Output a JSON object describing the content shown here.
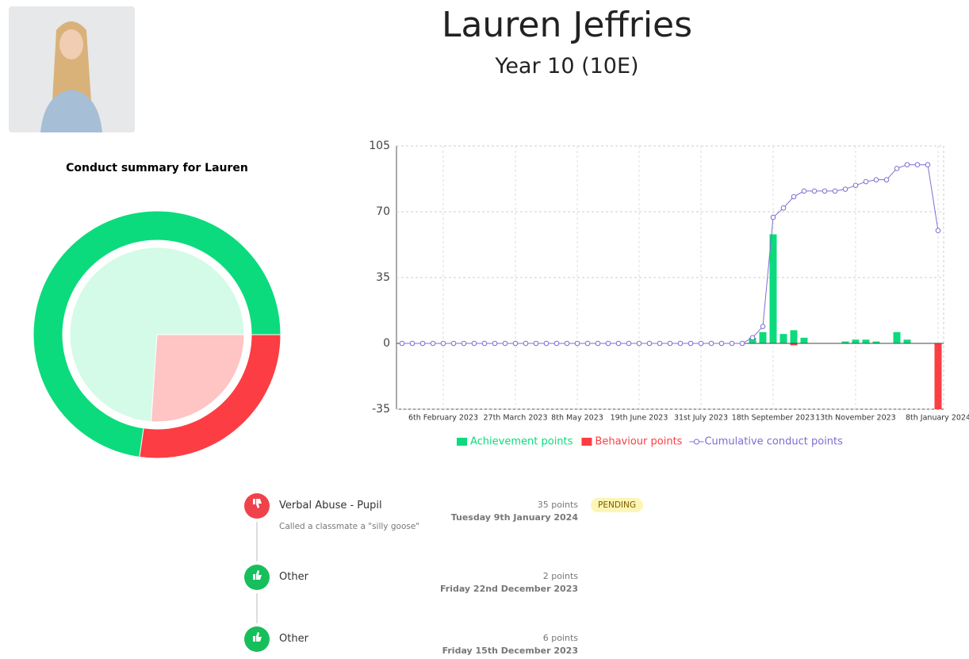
{
  "profile": {
    "name": "Lauren Jeffries",
    "subtitle": "Year 10 (10E)"
  },
  "summary_chart": {
    "type": "donut",
    "title": "Conduct summary for Lauren",
    "rings": [
      {
        "values": [
          96,
          36
        ],
        "colors": [
          "#0bdb7c",
          "#fc3d43"
        ]
      },
      {
        "values": [
          17,
          6
        ],
        "colors": [
          "#d4fbe7",
          "#ffc4c4"
        ]
      }
    ]
  },
  "points_chart": {
    "type": "bar-line",
    "categories": [
      null,
      null,
      null,
      null,
      "6th February 2023",
      null,
      null,
      null,
      null,
      null,
      null,
      "27th March 2023",
      null,
      null,
      null,
      null,
      null,
      "8th May 2023",
      null,
      null,
      null,
      null,
      null,
      "19th June 2023",
      null,
      null,
      null,
      null,
      null,
      "31st July 2023",
      null,
      null,
      null,
      null,
      null,
      null,
      "18th September 2023",
      null,
      null,
      null,
      null,
      null,
      null,
      null,
      "13th November 2023",
      null,
      null,
      null,
      null,
      null,
      null,
      null,
      "8th January 2024"
    ],
    "series": [
      {
        "name": "Achievement points",
        "color": "#0bdb7c",
        "type": "bar",
        "values": [
          0,
          0,
          0,
          0,
          0,
          0,
          0,
          0,
          0,
          0,
          0,
          0,
          0,
          0,
          0,
          0,
          0,
          0,
          0,
          0,
          0,
          0,
          0,
          0,
          0,
          0,
          0,
          0,
          0,
          0,
          0,
          0,
          0,
          0,
          3,
          6,
          58,
          5,
          7,
          3,
          0,
          0,
          0,
          1,
          2,
          2,
          1,
          0,
          6,
          2,
          0,
          0,
          0
        ]
      },
      {
        "name": "Behaviour points",
        "color": "#fc3d43",
        "type": "bar",
        "values": [
          0,
          0,
          0,
          0,
          0,
          0,
          0,
          0,
          0,
          0,
          0,
          0,
          0,
          0,
          0,
          0,
          0,
          0,
          0,
          0,
          0,
          0,
          0,
          0,
          0,
          0,
          0,
          0,
          0,
          0,
          0,
          0,
          0,
          0,
          0,
          0,
          0,
          0,
          -1,
          0,
          0,
          0,
          0,
          0,
          0,
          0,
          0,
          0,
          0,
          0,
          0,
          0,
          -35
        ]
      },
      {
        "name": "Cumulative conduct points",
        "color": "#7b6fd0",
        "type": "line",
        "values": [
          0,
          0,
          0,
          0,
          0,
          0,
          0,
          0,
          0,
          0,
          0,
          0,
          0,
          0,
          0,
          0,
          0,
          0,
          0,
          0,
          0,
          0,
          0,
          0,
          0,
          0,
          0,
          0,
          0,
          0,
          0,
          0,
          0,
          0,
          3,
          9,
          67,
          72,
          78,
          81,
          81,
          81,
          81,
          82,
          84,
          86,
          87,
          87,
          93,
          95,
          95,
          95,
          60
        ]
      }
    ],
    "ylim": [
      -35,
      105
    ],
    "yticks": [
      -35,
      0,
      35,
      70,
      105
    ],
    "grid": true,
    "legend": "bottom"
  },
  "timeline": [
    {
      "kind": "behaviour",
      "title": "Verbal Abuse - Pupil",
      "description": "Called a classmate a \"silly goose\"",
      "points": "35 points",
      "date": "Tuesday 9th January 2024",
      "status": "PENDING"
    },
    {
      "kind": "achievement",
      "title": "Other",
      "points": "2 points",
      "date": "Friday 22nd December 2023"
    },
    {
      "kind": "achievement",
      "title": "Other",
      "points": "6 points",
      "date": "Friday 15th December 2023"
    }
  ]
}
